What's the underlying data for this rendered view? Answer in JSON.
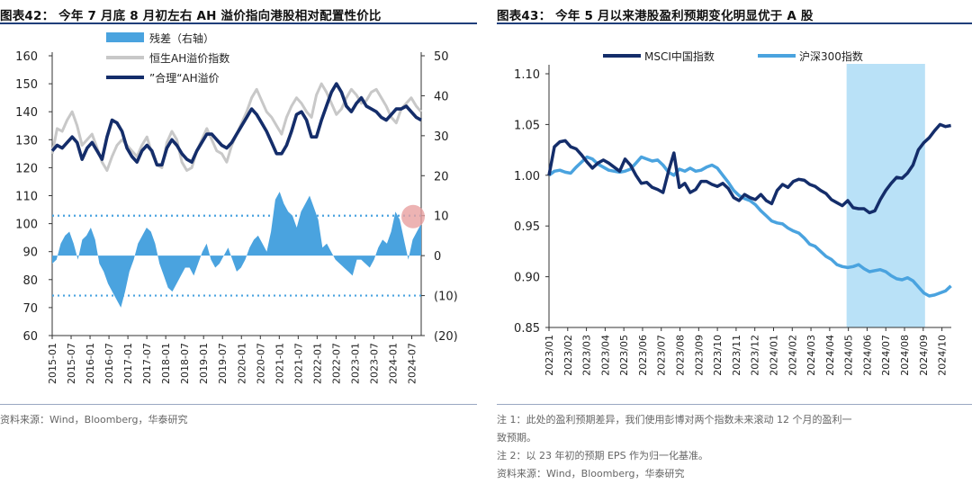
{
  "left": {
    "title": "图表42：  今年 7 月底 8 月初左右 AH 溢价指向港股相对配置性价比",
    "source": "资料来源：Wind，Bloomberg，华泰研究"
  },
  "right": {
    "title": "图表43：  今年 5 月以来港股盈利预期变化明显优于 A 股",
    "notes": [
      "注 1：此处的盈利预期差异，我们使用彭博对两个指数未来滚动 12 个月的盈利一",
      "致预期。",
      "注 2：以 23 年初的预期 EPS 作为归一化基准。",
      "资料来源：Wind，Bloomberg，华泰研究"
    ]
  },
  "colors": {
    "navy": "#142d6a",
    "lightblue": "#4aa3df",
    "gray": "#c8c8c8",
    "shade": "#b9e1f7",
    "dot": "#4aa3df",
    "marker": "#e8a0a0"
  },
  "chart_data": [
    {
      "type": "line",
      "y_left": {
        "ylim": [
          60,
          160
        ],
        "ticks": [
          "60",
          "70",
          "80",
          "90",
          "100",
          "110",
          "120",
          "130",
          "140",
          "150",
          "160"
        ]
      },
      "y_right": {
        "ylim": [
          -20,
          50
        ],
        "ticks": [
          "(20)",
          "(10)",
          "0",
          "10",
          "20",
          "30",
          "40",
          "50"
        ]
      },
      "x_ticks": [
        "2015-01",
        "2015-07",
        "2016-01",
        "2016-07",
        "2017-01",
        "2017-07",
        "2018-01",
        "2018-07",
        "2019-01",
        "2019-07",
        "2020-01",
        "2020-07",
        "2021-01",
        "2021-07",
        "2022-01",
        "2022-07",
        "2023-01",
        "2023-07",
        "2024-01",
        "2024-07"
      ],
      "reference_lines_right_axis": [
        10,
        -10
      ],
      "highlight_marker": {
        "x": "2024-08",
        "y_right": 10
      },
      "series": [
        {
          "name": "残差（右轴）",
          "kind": "area",
          "axis": "right",
          "values": [
            -2,
            -1,
            3,
            5,
            6,
            3,
            -1,
            4,
            5,
            7,
            4,
            -2,
            -4,
            -7,
            -9,
            -11,
            -13,
            -9,
            -4,
            -1,
            3,
            5,
            7,
            6,
            3,
            -2,
            -5,
            -8,
            -9,
            -7,
            -5,
            -3,
            -3,
            -5,
            -2,
            1,
            3,
            -1,
            -3,
            -2,
            0,
            2,
            -1,
            -4,
            -3,
            -1,
            2,
            4,
            5,
            3,
            1,
            6,
            14,
            16,
            13,
            11,
            10,
            7,
            11,
            13,
            15,
            12,
            9,
            2,
            3,
            1,
            -1,
            -2,
            -3,
            -4,
            -5,
            -1,
            -1,
            -2,
            -3,
            -1,
            2,
            4,
            3,
            6,
            11,
            9,
            4,
            -1,
            4,
            6,
            8
          ]
        },
        {
          "name": "恒生AH溢价指数",
          "kind": "line",
          "axis": "left",
          "values": [
            125,
            134,
            133,
            137,
            140,
            135,
            128,
            130,
            132,
            127,
            122,
            119,
            124,
            128,
            130,
            128,
            126,
            124,
            128,
            131,
            125,
            121,
            120,
            129,
            133,
            130,
            122,
            119,
            120,
            126,
            130,
            134,
            130,
            126,
            125,
            122,
            128,
            132,
            136,
            140,
            145,
            148,
            144,
            140,
            138,
            135,
            132,
            138,
            142,
            145,
            143,
            140,
            138,
            146,
            150,
            147,
            143,
            139,
            141,
            145,
            148,
            146,
            143,
            144,
            147,
            148,
            145,
            142,
            138,
            136,
            141,
            143,
            145,
            142,
            140
          ]
        },
        {
          "name": "”合理“AH溢价",
          "kind": "line",
          "axis": "left",
          "values": [
            126,
            128,
            127,
            129,
            131,
            129,
            123,
            127,
            129,
            126,
            123,
            131,
            137,
            136,
            133,
            127,
            124,
            122,
            126,
            128,
            126,
            121,
            121,
            127,
            130,
            128,
            125,
            123,
            122,
            126,
            129,
            132,
            132,
            130,
            128,
            127,
            129,
            132,
            135,
            138,
            141,
            139,
            136,
            133,
            129,
            125,
            125,
            128,
            133,
            139,
            140,
            137,
            131,
            131,
            137,
            142,
            147,
            150,
            147,
            142,
            140,
            143,
            145,
            142,
            141,
            140,
            138,
            137,
            139,
            141,
            141,
            142,
            140,
            138,
            137
          ]
        }
      ]
    },
    {
      "type": "line",
      "ylim": [
        0.85,
        1.1
      ],
      "y_ticks": [
        "0.85",
        "0.90",
        "0.95",
        "1.00",
        "1.05",
        "1.10"
      ],
      "x_ticks": [
        "2023/01",
        "2023/02",
        "2023/03",
        "2023/04",
        "2023/05",
        "2023/06",
        "2023/07",
        "2023/08",
        "2023/09",
        "2023/10",
        "2023/11",
        "2023/12",
        "2024/01",
        "2024/02",
        "2024/03",
        "2024/04",
        "2024/05",
        "2024/06",
        "2024/07",
        "2024/08",
        "2024/09",
        "2024/10"
      ],
      "shaded_range": [
        "2024/05",
        "2024/09"
      ],
      "series": [
        {
          "name": "MSCI中国指数",
          "color": "#142d6a",
          "values": [
            1.0,
            1.028,
            1.033,
            1.034,
            1.028,
            1.026,
            1.02,
            1.013,
            1.007,
            1.012,
            1.015,
            1.012,
            1.008,
            1.004,
            1.016,
            1.01,
            1.0,
            0.992,
            0.993,
            0.988,
            0.986,
            0.983,
            1.004,
            1.022,
            0.988,
            0.992,
            0.983,
            0.986,
            0.994,
            0.994,
            0.991,
            0.989,
            0.992,
            0.987,
            0.978,
            0.975,
            0.981,
            0.978,
            0.976,
            0.981,
            0.975,
            0.972,
            0.985,
            0.991,
            0.988,
            0.994,
            0.996,
            0.995,
            0.991,
            0.989,
            0.985,
            0.982,
            0.976,
            0.973,
            0.97,
            0.975,
            0.968,
            0.967,
            0.967,
            0.963,
            0.965,
            0.976,
            0.985,
            0.992,
            0.998,
            0.997,
            1.002,
            1.01,
            1.025,
            1.032,
            1.037,
            1.044,
            1.05,
            1.048,
            1.049
          ]
        },
        {
          "name": "沪深300指数",
          "color": "#4aa3df",
          "values": [
            1.0,
            1.004,
            1.005,
            1.003,
            1.002,
            1.008,
            1.013,
            1.018,
            1.016,
            1.011,
            1.008,
            1.005,
            1.004,
            1.003,
            1.004,
            1.006,
            1.012,
            1.018,
            1.016,
            1.014,
            1.015,
            1.01,
            1.003,
            1.0,
            1.006,
            1.004,
            1.007,
            1.004,
            1.005,
            1.008,
            1.01,
            1.007,
            1.0,
            0.993,
            0.985,
            0.98,
            0.977,
            0.975,
            0.971,
            0.965,
            0.96,
            0.955,
            0.953,
            0.952,
            0.948,
            0.945,
            0.943,
            0.938,
            0.932,
            0.93,
            0.925,
            0.92,
            0.917,
            0.912,
            0.91,
            0.909,
            0.91,
            0.912,
            0.908,
            0.905,
            0.906,
            0.907,
            0.905,
            0.901,
            0.898,
            0.897,
            0.899,
            0.896,
            0.89,
            0.884,
            0.881,
            0.882,
            0.884,
            0.886,
            0.891
          ]
        }
      ]
    }
  ]
}
